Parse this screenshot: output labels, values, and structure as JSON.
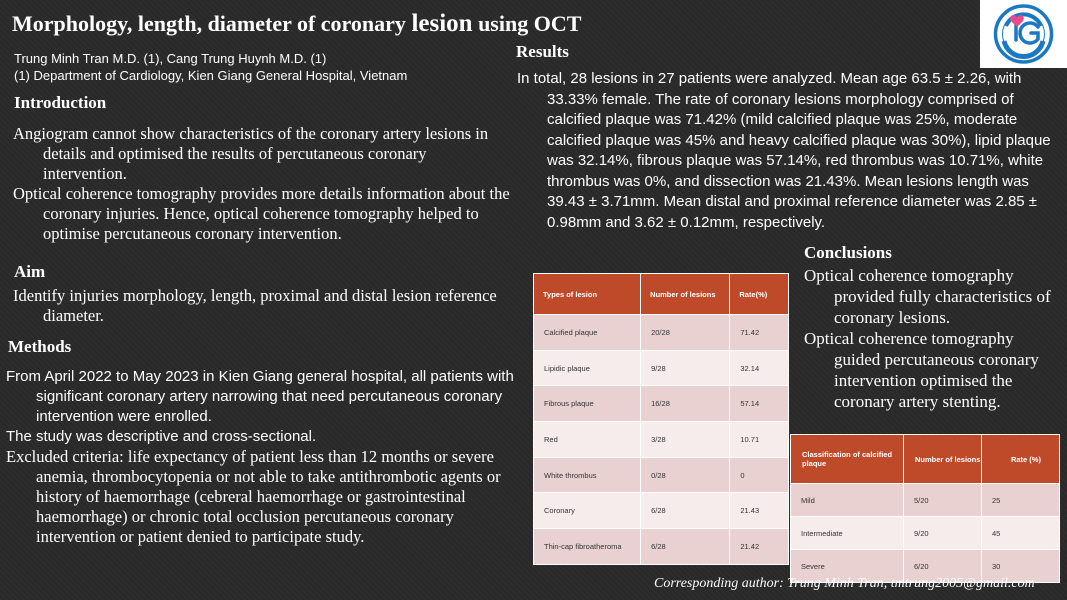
{
  "title": {
    "part1": "Morphology, length, diameter of coronary ",
    "part2": "lesion",
    "part3": " using OCT"
  },
  "authors": {
    "line1": "Trung Minh Tran M.D. (1), Cang Trung Huynh M.D. (1)",
    "line2": "(1) Department of Cardiology, Kien Giang General Hospital, Vietnam"
  },
  "logo": {
    "top_text": "BỆNH VIỆN ĐA KHOA TỈNH",
    "monogram": "KG",
    "bottom_text": "KIÊN GIANG",
    "primary_color": "#1b78c2",
    "accent_color": "#e84a8a"
  },
  "introduction": {
    "heading": "Introduction",
    "p1": "Angiogram cannot show characteristics of the coronary artery lesions in details and optimised the results of percutaneous coronary intervention.",
    "p2": "Optical coherence tomography provides more details information about the coronary injuries. Hence, optical coherence tomography helped to optimise percutaneous coronary intervention."
  },
  "aim": {
    "heading": "Aim",
    "p1": "Identify injuries morphology, length, proximal and distal lesion reference diameter."
  },
  "methods": {
    "heading": "Methods",
    "p1": "From April 2022 to May 2023 in Kien Giang general hospital, all patients with significant coronary artery narrowing that need percutaneous coronary intervention were enrolled.",
    "p2": "The study was descriptive and cross-sectional.",
    "p3": "Excluded criteria: life expectancy of patient less than 12 months or severe anemia, thrombocytopenia or not able to take antithrombotic agents or history of haemorrhage (cebreral haemorrhage or gastrointestinal haemorrhage) or chronic total occlusion percutaneous coronary intervention or patient denied to participate study."
  },
  "results": {
    "heading": "Results",
    "p1": "In total, 28 lesions in 27 patients were analyzed. Mean age 63.5 ± 2.26, with 33.33% female. The rate of coronary lesions morphology comprised of calcified plaque was 71.42% (mild calcified plaque was 25%, moderate calcified plaque was 45% and heavy calcified plaque was 30%), lipid plaque was 32.14%, fibrous plaque was 57.14%, red thrombus was 10.71%, white thrombus was 0%, and dissection was 21.43%. Mean lesions length was 39.43 ± 3.71mm. Mean distal and proximal reference diameter was 2.85 ± 0.98mm and 3.62 ± 0.12mm, respectively."
  },
  "table1": {
    "headers": [
      "Types of lesion",
      "Number of lesions",
      "Rate(%)"
    ],
    "rows": [
      [
        "Calcified plaque",
        "20/28",
        "71.42"
      ],
      [
        "Lipidic plaque",
        "9/28",
        "32.14"
      ],
      [
        "Fibrous plaque",
        "16/28",
        "57.14"
      ],
      [
        "Red",
        "3/28",
        "10.71"
      ],
      [
        "White thrombus",
        "0/28",
        "0"
      ],
      [
        "Coronary",
        "6/28",
        "21.43"
      ],
      [
        "Thin-cap fibroatheroma",
        "6/28",
        "21.42"
      ]
    ]
  },
  "conclusions": {
    "heading": "Conclusions",
    "p1": "Optical coherence tomography provided fully characteristics of coronary lesions.",
    "p2": "Optical coherence tomography guided percutaneous coronary intervention optimised the coronary artery stenting."
  },
  "table2": {
    "headers": [
      "Classification of calcified plaque",
      "Number of lesions",
      "Rate (%)"
    ],
    "rows": [
      [
        "Mild",
        "5/20",
        "25"
      ],
      [
        "Intermediate",
        "9/20",
        "45"
      ],
      [
        "Severe",
        "6/20",
        "30"
      ]
    ]
  },
  "footer": "Corresponding author: Trung Minh Tran, tmtrung2005@gmail.com"
}
